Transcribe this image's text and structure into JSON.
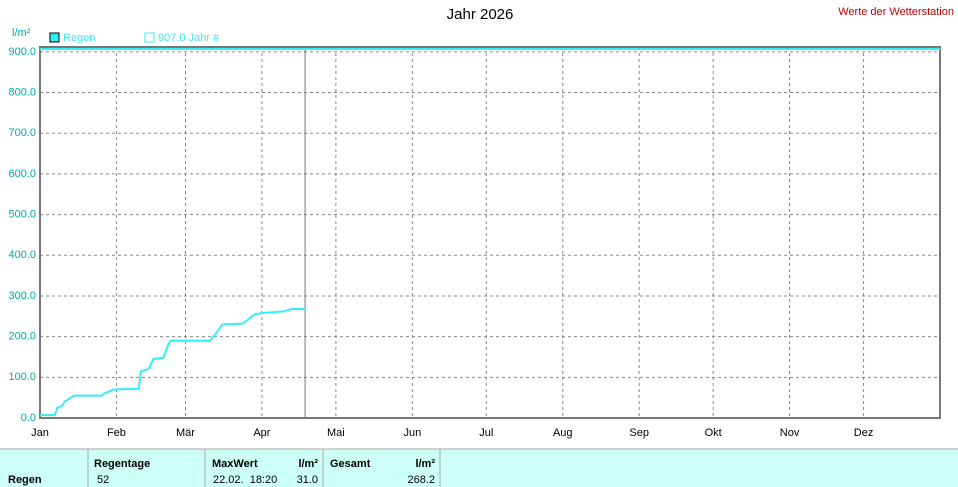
{
  "chart_data": {
    "type": "line",
    "title": "Jahr 2026",
    "subtitle": "Werte der Wetterstation",
    "y_label": "l/m²",
    "xlim": [
      0,
      365
    ],
    "ylim": [
      0,
      912
    ],
    "grid": true,
    "current_day": 107.5,
    "xticks": [
      {
        "value": 0,
        "label": "Jan"
      },
      {
        "value": 31,
        "label": "Feb"
      },
      {
        "value": 59,
        "label": "Mär"
      },
      {
        "value": 90,
        "label": "Apr"
      },
      {
        "value": 120,
        "label": "Mai"
      },
      {
        "value": 151,
        "label": "Jun"
      },
      {
        "value": 181,
        "label": "Jul"
      },
      {
        "value": 212,
        "label": "Aug"
      },
      {
        "value": 243,
        "label": "Sep"
      },
      {
        "value": 273,
        "label": "Okt"
      },
      {
        "value": 304,
        "label": "Nov"
      },
      {
        "value": 334,
        "label": "Dez"
      }
    ],
    "yticks": [
      {
        "value": 0,
        "label": "0.0"
      },
      {
        "value": 100,
        "label": "100.0"
      },
      {
        "value": 200,
        "label": "200.0"
      },
      {
        "value": 300,
        "label": "300.0"
      },
      {
        "value": 400,
        "label": "400.0"
      },
      {
        "value": 500,
        "label": "500.0"
      },
      {
        "value": 600,
        "label": "600.0"
      },
      {
        "value": 700,
        "label": "700.0"
      },
      {
        "value": 800,
        "label": "800.0"
      },
      {
        "value": 900,
        "label": "900.0"
      }
    ],
    "series": [
      {
        "name": "Regen",
        "color": "#33eef5",
        "x": [
          0,
          6,
          7,
          9,
          10,
          12,
          14,
          25,
          26,
          28,
          30,
          40,
          41,
          44,
          46,
          50,
          52,
          53,
          69,
          71,
          74,
          82,
          84,
          87,
          90,
          99,
          102,
          107.5
        ],
        "values": [
          7,
          7,
          25,
          30,
          40,
          48,
          55,
          55,
          60,
          65,
          70,
          72,
          115,
          120,
          145,
          148,
          180,
          190,
          190,
          205,
          230,
          232,
          240,
          255,
          258,
          262,
          268,
          268
        ]
      },
      {
        "name": "907.0 Jahr #",
        "color": "#33eef5",
        "x": [
          0,
          365
        ],
        "values": [
          907,
          907
        ]
      }
    ]
  },
  "table": {
    "columns": [
      "Regentage",
      "MaxWert",
      "l/m²",
      "Gesamt",
      "l/m²"
    ],
    "row_label": "Regen",
    "row": [
      "52",
      "22.02.  18:20",
      "31.0",
      "268.2"
    ]
  }
}
